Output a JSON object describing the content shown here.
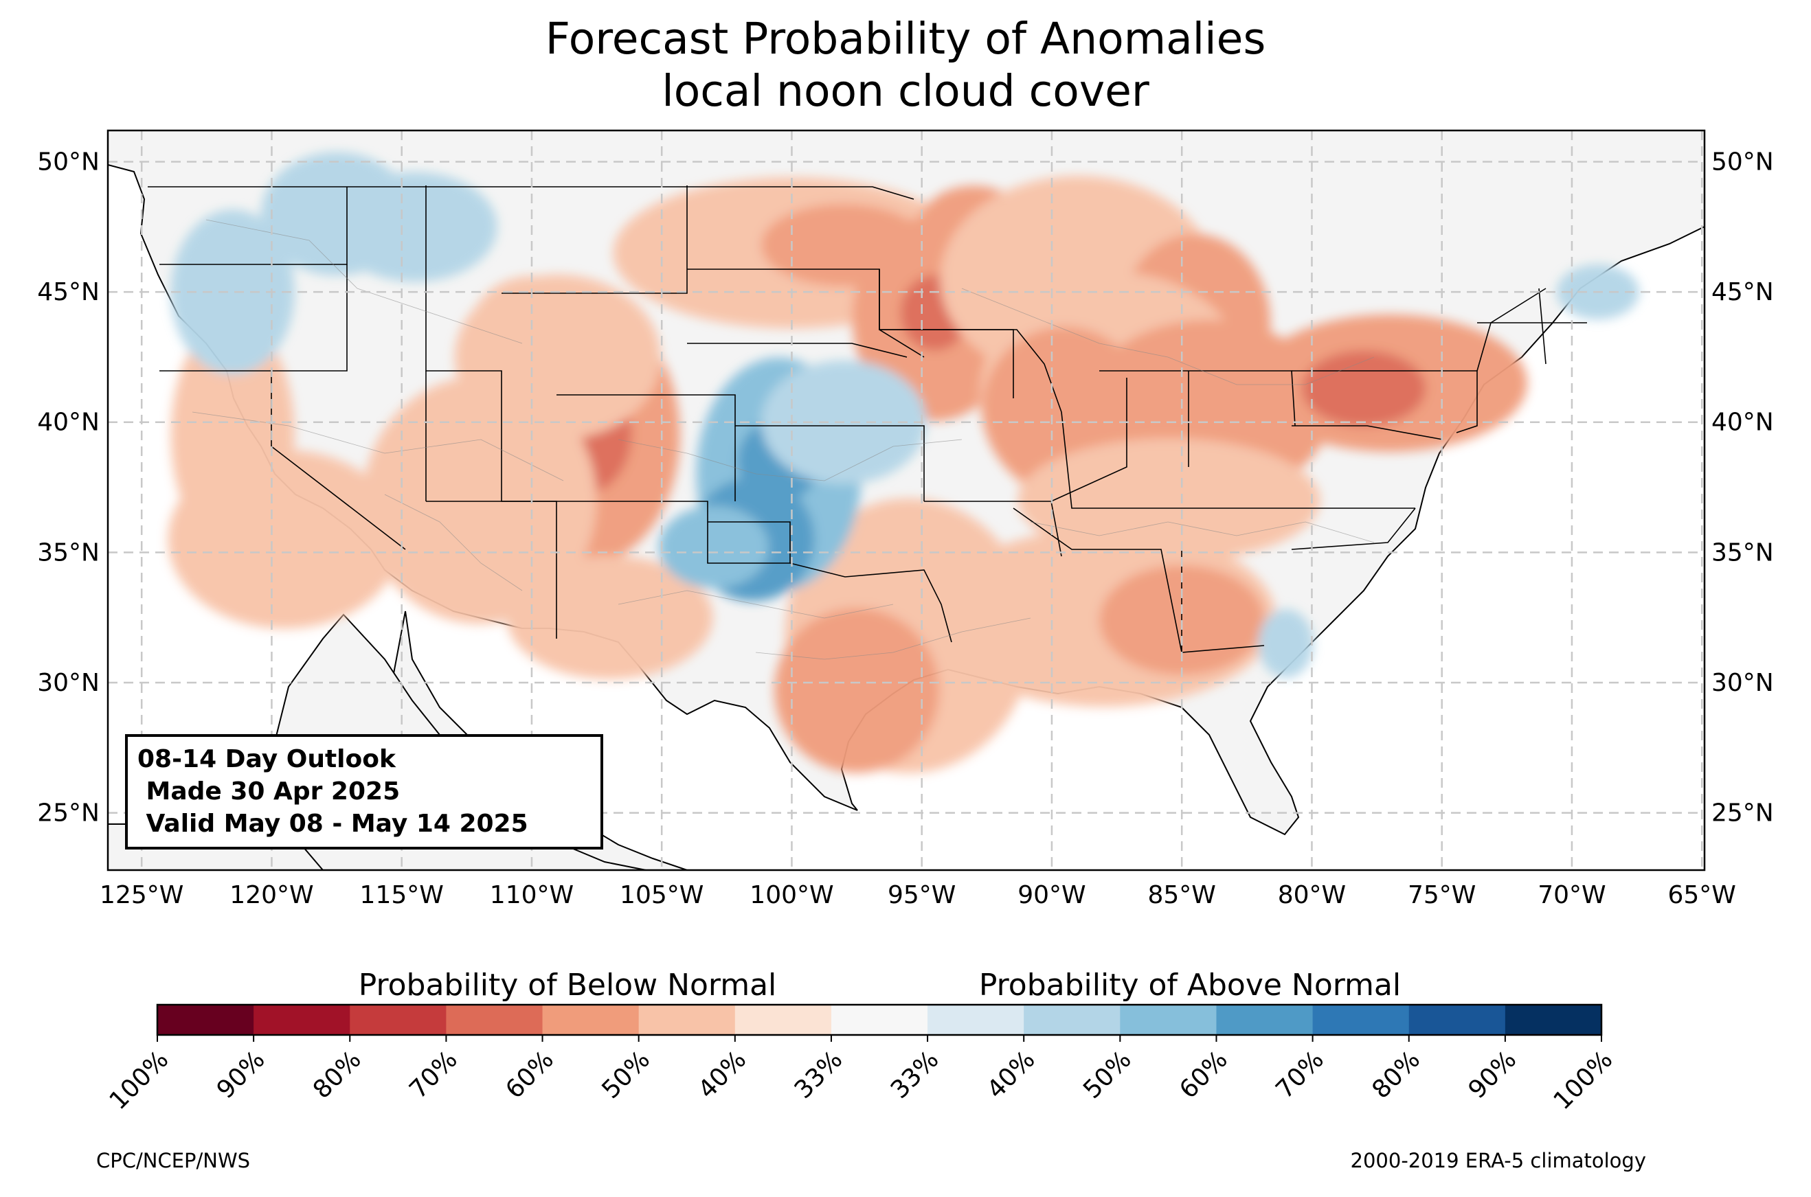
{
  "title": "Forecast Probability of Anomalies",
  "subtitle": "local noon cloud cover",
  "map": {
    "region": "Contiguous United States",
    "lat_range": [
      22.8,
      51.2
    ],
    "lon_range": [
      -126.3,
      -64.9
    ],
    "lat_ticks": [
      "25°N",
      "30°N",
      "35°N",
      "40°N",
      "45°N",
      "50°N"
    ],
    "lon_ticks": [
      "125°W",
      "120°W",
      "115°W",
      "110°W",
      "105°W",
      "100°W",
      "95°W",
      "90°W",
      "85°W",
      "80°W",
      "75°W",
      "70°W",
      "65°W"
    ],
    "gridlines": "dashed"
  },
  "outlook_box": {
    "line1": "08-14 Day Outlook",
    "line2": " Made 30 Apr 2025",
    "line3": " Valid May 08 - May 14 2025"
  },
  "colorbar": {
    "below_label": "Probability of Below Normal",
    "above_label": "Probability of Above Normal",
    "tick_labels": [
      "100%",
      "90%",
      "80%",
      "70%",
      "60%",
      "50%",
      "40%",
      "33%",
      "33%",
      "40%",
      "50%",
      "60%",
      "70%",
      "80%",
      "90%",
      "100%"
    ],
    "colors": [
      "#67001f",
      "#a11228",
      "#c53b3c",
      "#dd6b57",
      "#f09c7b",
      "#f8c3a8",
      "#fbe3d4",
      "#f7f7f7",
      "#dbe9f2",
      "#b3d5e7",
      "#86bfdb",
      "#4f9ac6",
      "#2e78b5",
      "#195697",
      "#053061"
    ]
  },
  "chart_data": {
    "type": "heatmap",
    "field": "probability of cloud cover anomaly (%)",
    "below_normal_regions": [
      {
        "area": "Colorado / Utah",
        "probability": "60-70%"
      },
      {
        "area": "Southern Minnesota / Iowa",
        "probability": "60-70%"
      },
      {
        "area": "Pennsylvania",
        "probability": "60-70%"
      },
      {
        "area": "Wisconsin / Michigan",
        "probability": "50-70%"
      },
      {
        "area": "Ohio Valley / Illinois / Indiana",
        "probability": "40-60%"
      },
      {
        "area": "East Texas / Louisiana",
        "probability": "40-60%"
      },
      {
        "area": "Dakotas / Montana",
        "probability": "40-60%"
      },
      {
        "area": "Southern California / Arizona",
        "probability": "40-50%"
      }
    ],
    "above_normal_regions": [
      {
        "area": "Texas Panhandle / Oklahoma / Kansas",
        "probability": "40-70%"
      },
      {
        "area": "Pacific Northwest / Idaho",
        "probability": "33-50%"
      },
      {
        "area": "Maine",
        "probability": "33-40%"
      }
    ]
  },
  "footer": {
    "left": "CPC/NCEP/NWS",
    "right": "2000-2019 ERA-5 climatology"
  }
}
